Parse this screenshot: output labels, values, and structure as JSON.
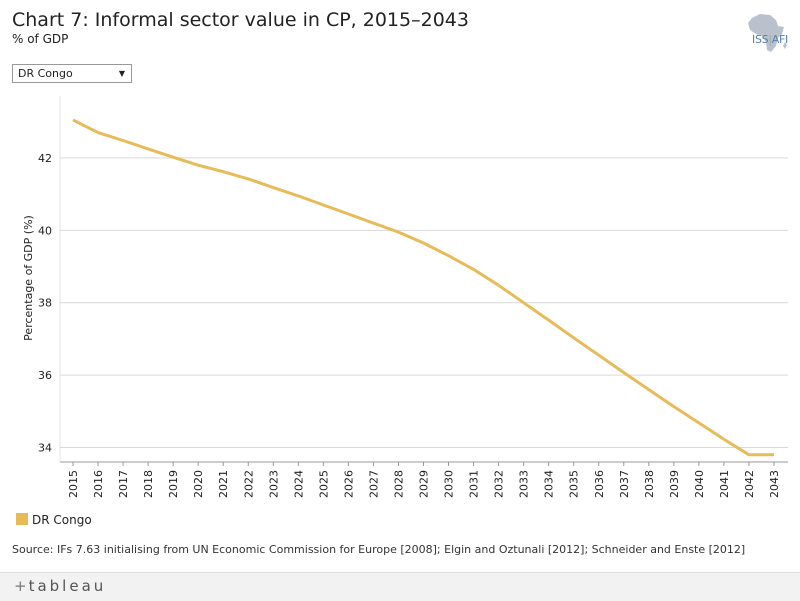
{
  "header": {
    "title": "Chart 7: Informal sector value in CP, 2015–2043",
    "subtitle": "% of GDP"
  },
  "logo": {
    "text_left": "ISS",
    "text_sep": "|",
    "text_right": "AFI",
    "icon": "africa-map-icon"
  },
  "filter": {
    "selected": "DR Congo",
    "icon": "chevron-down-icon"
  },
  "legend": {
    "label": "DR Congo"
  },
  "source": "Source: IFs 7.63 initialising from UN Economic Commission for Europe [2008]; Elgin and Oztunali [2012]; Schneider and Enste [2012]",
  "footer": {
    "brand": "tableau",
    "brand_mark": "+"
  },
  "colors": {
    "series": "#E6BB58",
    "grid": "#d9d9d9",
    "axis": "#999999"
  },
  "chart_data": {
    "type": "line",
    "title": "Chart 7: Informal sector value in CP, 2015–2043",
    "subtitle": "% of GDP",
    "xlabel": "",
    "ylabel": "Percentage of GDP (%)",
    "ylim": [
      33.6,
      43.6
    ],
    "yticks": [
      34,
      36,
      38,
      40,
      42
    ],
    "x": [
      "2015",
      "2016",
      "2017",
      "2018",
      "2019",
      "2020",
      "2021",
      "2022",
      "2023",
      "2024",
      "2025",
      "2026",
      "2027",
      "2028",
      "2029",
      "2030",
      "2031",
      "2032",
      "2033",
      "2034",
      "2035",
      "2036",
      "2037",
      "2038",
      "2039",
      "2040",
      "2041",
      "2042",
      "2043"
    ],
    "series": [
      {
        "name": "DR Congo",
        "color": "#E6BB58",
        "values": [
          43.05,
          42.7,
          42.48,
          42.25,
          42.02,
          41.8,
          41.62,
          41.42,
          41.18,
          40.95,
          40.7,
          40.45,
          40.2,
          39.95,
          39.65,
          39.3,
          38.92,
          38.48,
          38.0,
          37.52,
          37.03,
          36.55,
          36.07,
          35.6,
          35.13,
          34.68,
          34.23,
          33.8,
          33.8
        ]
      }
    ],
    "grid": true,
    "legend_position": "bottom-left"
  }
}
